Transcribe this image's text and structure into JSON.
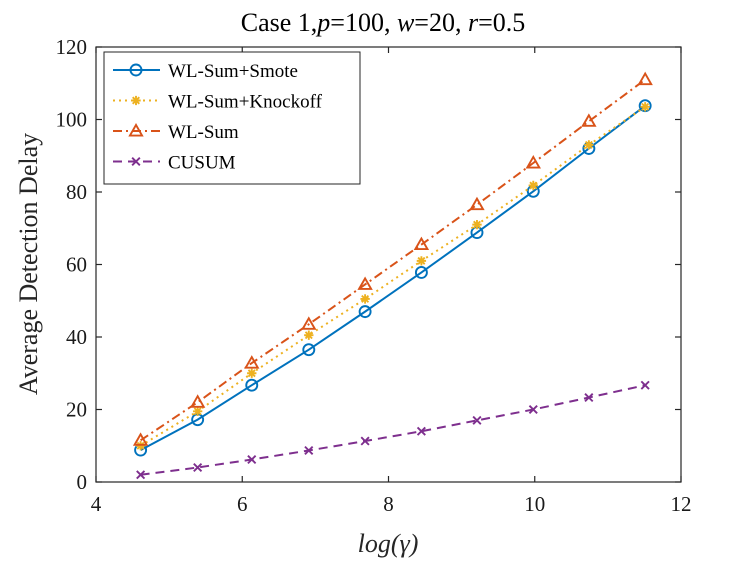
{
  "chart_data": {
    "type": "line",
    "title": "Case 1,p=100, w=20, r=0.5",
    "title_parts": [
      {
        "text": "Case 1,",
        "italic": false
      },
      {
        "text": "p",
        "italic": true
      },
      {
        "text": "=100, ",
        "italic": false
      },
      {
        "text": "w",
        "italic": true
      },
      {
        "text": "=20, ",
        "italic": false
      },
      {
        "text": "r",
        "italic": true
      },
      {
        "text": "=0.5",
        "italic": false
      }
    ],
    "xlabel": "log(γ)",
    "ylabel": "Average Detection Delay",
    "xlim": [
      4,
      12
    ],
    "ylim": [
      0,
      120
    ],
    "xticks": [
      4,
      6,
      8,
      10,
      12
    ],
    "yticks": [
      0,
      20,
      40,
      60,
      80,
      100,
      120
    ],
    "grid": false,
    "legend_position": "top-left",
    "x": [
      4.61,
      5.39,
      6.13,
      6.91,
      7.68,
      8.45,
      9.21,
      9.98,
      10.74,
      11.51
    ],
    "series": [
      {
        "name": "WL-Sum+Smote",
        "color": "#0072BD",
        "style": "solid",
        "marker": "circle",
        "values": [
          8.8,
          17.2,
          26.7,
          36.5,
          47.0,
          57.8,
          68.8,
          80.2,
          92.0,
          103.8
        ]
      },
      {
        "name": "WL-Sum+Knockoff",
        "color": "#EDB120",
        "style": "dotted",
        "marker": "asterisk",
        "values": [
          10.0,
          19.5,
          30.0,
          40.5,
          50.5,
          61.0,
          71.0,
          81.8,
          93.0,
          103.5
        ]
      },
      {
        "name": "WL-Sum",
        "color": "#D95319",
        "style": "dashdot",
        "marker": "triangle",
        "values": [
          11.5,
          22.0,
          32.8,
          43.5,
          54.5,
          65.5,
          76.5,
          88.0,
          99.5,
          111.0
        ]
      },
      {
        "name": "CUSUM",
        "color": "#7E2F8E",
        "style": "dashed",
        "marker": "x",
        "values": [
          2.0,
          4.0,
          6.2,
          8.7,
          11.3,
          14.0,
          17.0,
          20.0,
          23.3,
          26.7
        ]
      }
    ]
  }
}
